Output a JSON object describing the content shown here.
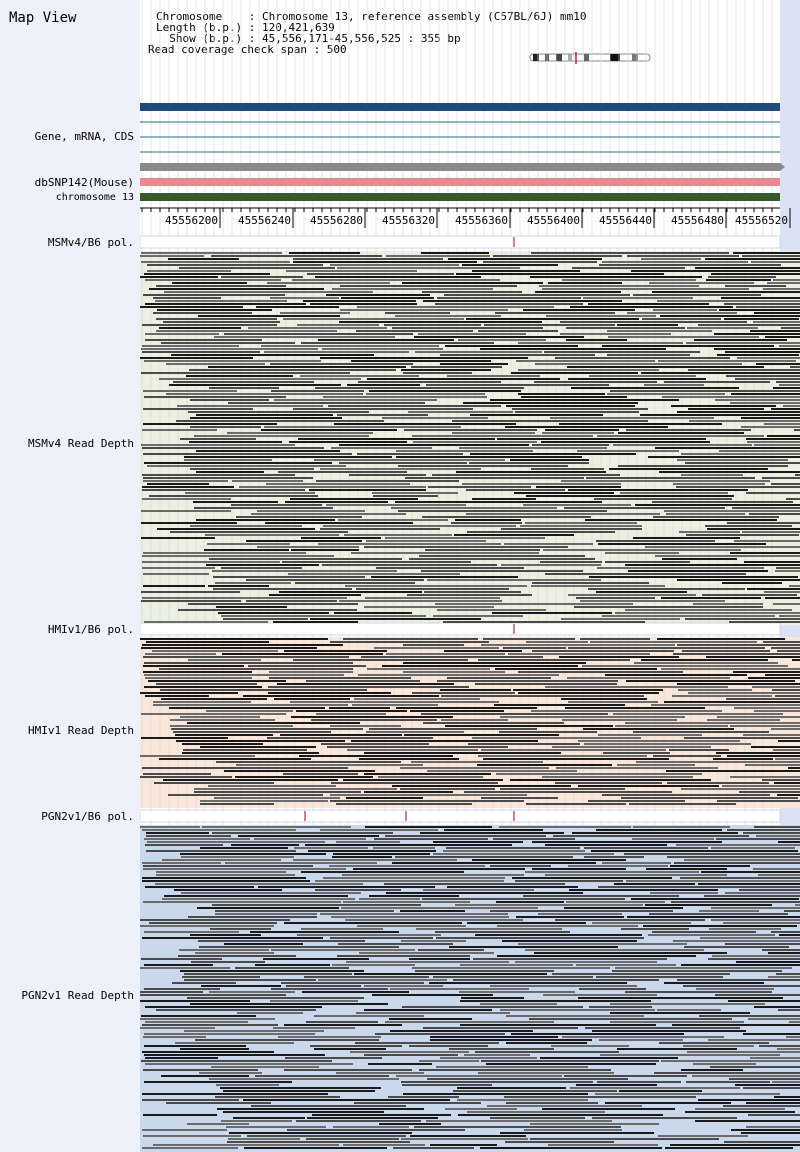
{
  "header": {
    "title": "Map View",
    "chromosome_line": "Chromosome    : Chromosome 13, reference assembly (C57BL/6J) mm10",
    "length_line": "Length (b.p.) : 120,421,639",
    "show_line": "  Show (b.p.) : 45,556,171-45,556,525 : 355 bp",
    "coverage_line": "Read coverage check span : 500"
  },
  "tracks": {
    "gene": "Gene, mRNA, CDS",
    "dbsnp": "dbSNP142(Mouse)",
    "chromosome": "chromosome 13"
  },
  "ruler": {
    "ticks": [
      "45556200",
      "45556240",
      "45556280",
      "45556320",
      "45556360",
      "45556400",
      "45556440",
      "45556480",
      "45556520"
    ]
  },
  "panels": [
    {
      "pol_label": "MSMv4/B6 pol.",
      "depth_label": "MSMv4 Read Depth",
      "color": "#ebf0e0"
    },
    {
      "pol_label": "HMIv1/B6 pol.",
      "depth_label": "HMIv1 Read Depth",
      "color": "#fbe7d9"
    },
    {
      "pol_label": "PGN2v1/B6 pol.",
      "depth_label": "PGN2v1 Read Depth",
      "color": "#cad8ee"
    }
  ],
  "colors": {
    "gene_bar": "#1f4b7e",
    "snp_bar": "#e88a91",
    "chrom_bar": "#37592a",
    "gray_bar": "#8a8a8a",
    "read_dark": "#1a1a1a",
    "read_mid": "#555555",
    "left_bg": "#eef1fb"
  }
}
